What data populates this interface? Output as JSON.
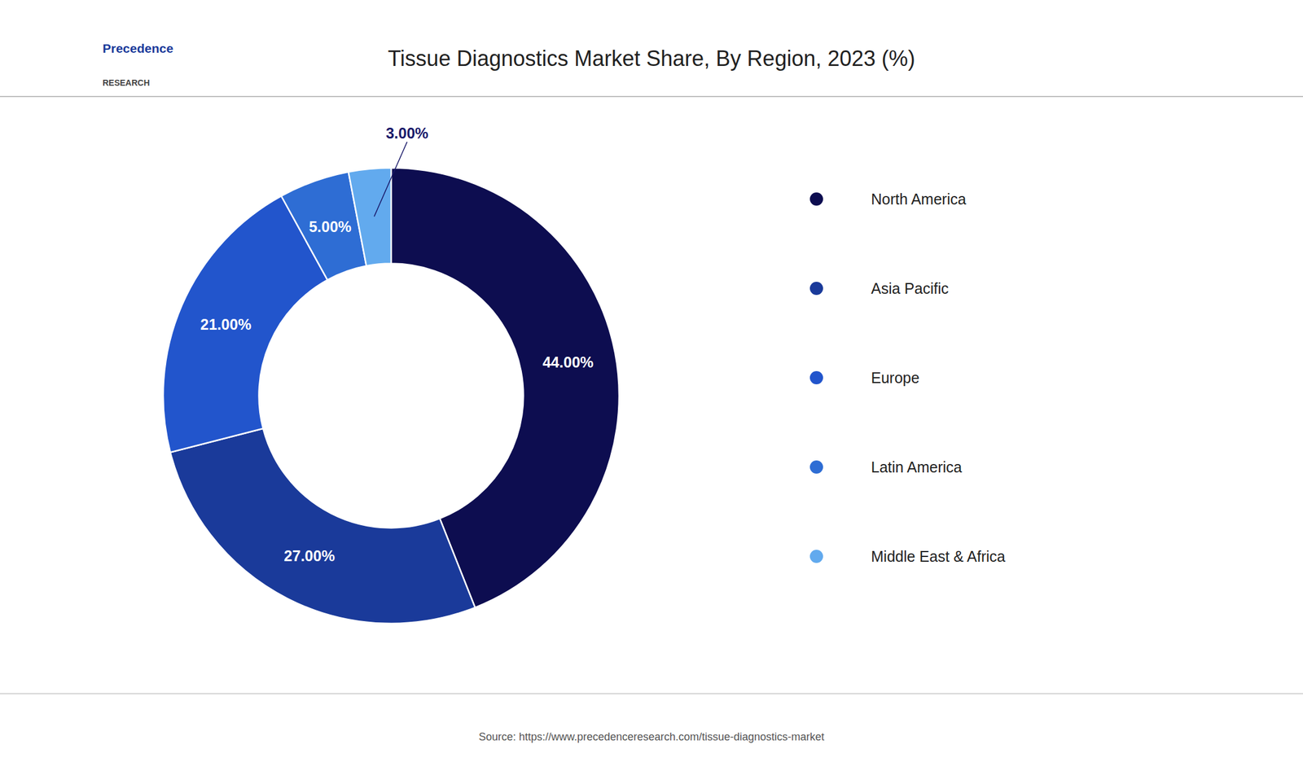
{
  "chart_data": {
    "type": "donut",
    "title": "Tissue Diagnostics Market Share, By Region, 2023 (%)",
    "categories": [
      "North America",
      "Asia Pacific",
      "Europe",
      "Latin America",
      "Middle East & Africa"
    ],
    "values": [
      44.0,
      27.0,
      21.0,
      5.0,
      3.0
    ],
    "value_labels": [
      "44.00%",
      "27.00%",
      "21.00%",
      "5.00%",
      "3.00%"
    ],
    "colors": [
      "#0d0d50",
      "#1a3a9a",
      "#2255cc",
      "#2e6dd4",
      "#62aaee"
    ],
    "data_labels": true,
    "legend": "right",
    "annotations": [
      "Precedence",
      "RESEARCH"
    ],
    "source": "Source: https://www.precedenceresearch.com/tissue-diagnostics-market"
  }
}
